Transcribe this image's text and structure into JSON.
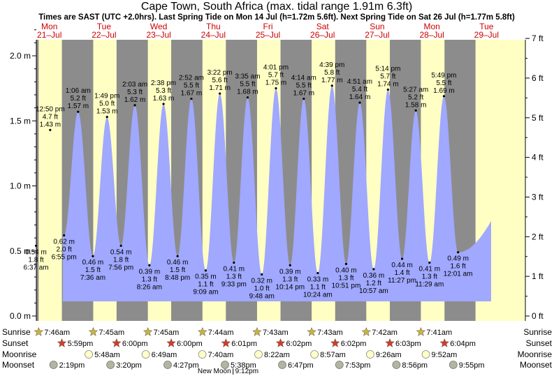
{
  "chart_data": {
    "type": "area",
    "title": "Cape Town, South Africa (max. tidal range 1.91m 6.3ft)",
    "subtitle": "Times are SAST (UTC +2.0hrs). Last Spring Tide on Mon 14 Jul (h=1.72m 5.6ft). Next Spring Tide on Sat 26 Jul (h=1.77m 5.8ft)",
    "y_left_unit": "m",
    "y_right_unit": "ft",
    "ylim_m": [
      0,
      2.2
    ],
    "yticks_m": [
      {
        "v": 0,
        "label": "0.0 m"
      },
      {
        "v": 0.5,
        "label": "0.5 m"
      },
      {
        "v": 1,
        "label": "1.0 m"
      },
      {
        "v": 1.5,
        "label": "1.5 m"
      },
      {
        "v": 2,
        "label": "2.0 m"
      }
    ],
    "yticks_ft": [
      {
        "v": 0,
        "label": "0 ft"
      },
      {
        "v": 1,
        "label": "1 ft"
      },
      {
        "v": 2,
        "label": "2 ft"
      },
      {
        "v": 3,
        "label": "3 ft"
      },
      {
        "v": 4,
        "label": "4 ft"
      },
      {
        "v": 5,
        "label": "5 ft"
      },
      {
        "v": 6,
        "label": "6 ft"
      },
      {
        "v": 7,
        "label": "7 ft"
      }
    ],
    "days": [
      {
        "dow": "Mon",
        "date": "21–Jul",
        "sunrise": "7:46am",
        "sunset": "5:59pm",
        "moonrise": "",
        "moonset": "2:19pm"
      },
      {
        "dow": "Tue",
        "date": "22–Jul",
        "sunrise": "7:45am",
        "sunset": "6:00pm",
        "moonrise": "5:48am",
        "moonset": "3:20pm"
      },
      {
        "dow": "Wed",
        "date": "23–Jul",
        "sunrise": "7:45am",
        "sunset": "6:00pm",
        "moonrise": "6:49am",
        "moonset": "4:27pm"
      },
      {
        "dow": "Thu",
        "date": "24–Jul",
        "sunrise": "7:44am",
        "sunset": "6:01pm",
        "moonrise": "7:40am",
        "moonset": "5:38pm"
      },
      {
        "dow": "Fri",
        "date": "25–Jul",
        "sunrise": "7:43am",
        "sunset": "6:02pm",
        "moonrise": "8:22am",
        "moonset": "6:47pm"
      },
      {
        "dow": "Sat",
        "date": "26–Jul",
        "sunrise": "7:43am",
        "sunset": "6:02pm",
        "moonrise": "8:57am",
        "moonset": "7:53pm"
      },
      {
        "dow": "Sun",
        "date": "27–Jul",
        "sunrise": "7:42am",
        "sunset": "6:03pm",
        "moonrise": "9:26am",
        "moonset": "8:56pm"
      },
      {
        "dow": "Mon",
        "date": "28–Jul",
        "sunrise": "7:41am",
        "sunset": "6:04pm",
        "moonrise": "9:52am",
        "moonset": "9:55pm"
      },
      {
        "dow": "Tue",
        "date": "29–Jul",
        "sunrise": "",
        "sunset": "",
        "moonrise": "",
        "moonset": ""
      }
    ],
    "tides": [
      {
        "day": 0,
        "time": "6:37 am",
        "m": 0.54,
        "ft": "1.8 ft",
        "type": "low"
      },
      {
        "day": 0,
        "time": "12:50 pm",
        "m": 1.43,
        "ft": "4.7 ft",
        "type": "high"
      },
      {
        "day": 0,
        "time": "6:55 pm",
        "m": 0.62,
        "ft": "2.0 ft",
        "type": "low"
      },
      {
        "day": 1,
        "time": "1:06 am",
        "m": 1.57,
        "ft": "5.2 ft",
        "type": "high"
      },
      {
        "day": 1,
        "time": "7:36 am",
        "m": 0.46,
        "ft": "1.5 ft",
        "type": "low"
      },
      {
        "day": 1,
        "time": "1:49 pm",
        "m": 1.53,
        "ft": "5.0 ft",
        "type": "high"
      },
      {
        "day": 1,
        "time": "7:56 pm",
        "m": 0.54,
        "ft": "1.8 ft",
        "type": "low"
      },
      {
        "day": 2,
        "time": "2:03 am",
        "m": 1.62,
        "ft": "5.3 ft",
        "type": "high"
      },
      {
        "day": 2,
        "time": "8:26 am",
        "m": 0.39,
        "ft": "1.3 ft",
        "type": "low"
      },
      {
        "day": 2,
        "time": "2:38 pm",
        "m": 1.63,
        "ft": "5.3 ft",
        "type": "high"
      },
      {
        "day": 2,
        "time": "8:48 pm",
        "m": 0.46,
        "ft": "1.5 ft",
        "type": "low"
      },
      {
        "day": 3,
        "time": "2:52 am",
        "m": 1.67,
        "ft": "5.5 ft",
        "type": "high"
      },
      {
        "day": 3,
        "time": "9:09 am",
        "m": 0.35,
        "ft": "1.1 ft",
        "type": "low"
      },
      {
        "day": 3,
        "time": "3:22 pm",
        "m": 1.71,
        "ft": "5.6 ft",
        "type": "high"
      },
      {
        "day": 3,
        "time": "9:33 pm",
        "m": 0.41,
        "ft": "1.3 ft",
        "type": "low"
      },
      {
        "day": 4,
        "time": "3:35 am",
        "m": 1.68,
        "ft": "5.5 ft",
        "type": "high"
      },
      {
        "day": 4,
        "time": "9:48 am",
        "m": 0.32,
        "ft": "1.0 ft",
        "type": "low"
      },
      {
        "day": 4,
        "time": "4:01 pm",
        "m": 1.75,
        "ft": "5.7 ft",
        "type": "high"
      },
      {
        "day": 4,
        "time": "10:14 pm",
        "m": 0.39,
        "ft": "1.3 ft",
        "type": "low"
      },
      {
        "day": 5,
        "time": "4:14 am",
        "m": 1.67,
        "ft": "5.5 ft",
        "type": "high"
      },
      {
        "day": 5,
        "time": "10:24 am",
        "m": 0.33,
        "ft": "1.1 ft",
        "type": "low"
      },
      {
        "day": 5,
        "time": "4:39 pm",
        "m": 1.77,
        "ft": "5.8 ft",
        "type": "high"
      },
      {
        "day": 5,
        "time": "10:51 pm",
        "m": 0.4,
        "ft": "1.3 ft",
        "type": "low"
      },
      {
        "day": 6,
        "time": "4:51 am",
        "m": 1.64,
        "ft": "5.4 ft",
        "type": "high"
      },
      {
        "day": 6,
        "time": "10:57 am",
        "m": 0.36,
        "ft": "1.2 ft",
        "type": "low"
      },
      {
        "day": 6,
        "time": "5:14 pm",
        "m": 1.74,
        "ft": "5.7 ft",
        "type": "high"
      },
      {
        "day": 6,
        "time": "11:27 pm",
        "m": 0.44,
        "ft": "1.4 ft",
        "type": "low"
      },
      {
        "day": 7,
        "time": "5:27 am",
        "m": 1.58,
        "ft": "5.2 ft",
        "type": "high"
      },
      {
        "day": 7,
        "time": "11:29 am",
        "m": 0.41,
        "ft": "1.3 ft",
        "type": "low"
      },
      {
        "day": 7,
        "time": "5:49 pm",
        "m": 1.69,
        "ft": "5.5 ft",
        "type": "high"
      },
      {
        "day": 8,
        "time": "12:01 am",
        "m": 0.49,
        "ft": "1.6 ft",
        "type": "low"
      }
    ],
    "row_labels": {
      "sunrise": "Sunrise",
      "sunset": "Sunset",
      "moonrise": "Moonrise",
      "moonset": "Moonset"
    },
    "new_moon": {
      "label": "New Moon",
      "time": "9:12pm",
      "day": 3
    },
    "colors": {
      "night": "#8c8c8c",
      "day": "#ffffc4",
      "water": "#a0a8ff",
      "title": "#000000",
      "day_header": "#cc0000",
      "star": "#c8b43c",
      "sunset_star": "#d23c28",
      "moon": "#ffffc8",
      "moonset": "#b4b4a0"
    }
  }
}
